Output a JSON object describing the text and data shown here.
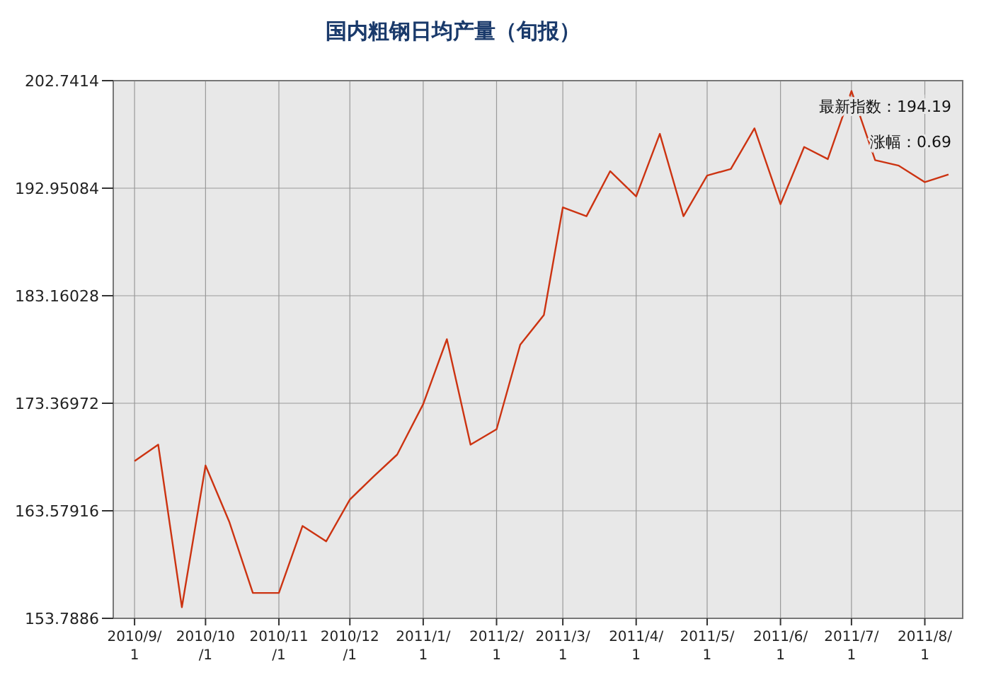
{
  "chart_data": {
    "type": "line",
    "title": "国内粗钢日均产量（旬报）",
    "x": [
      "2010-09-01",
      "2010-09-11",
      "2010-09-21",
      "2010-10-01",
      "2010-10-11",
      "2010-10-21",
      "2010-11-01",
      "2010-11-11",
      "2010-11-21",
      "2010-12-01",
      "2010-12-11",
      "2010-12-21",
      "2011-01-01",
      "2011-01-11",
      "2011-01-21",
      "2011-02-01",
      "2011-02-11",
      "2011-02-21",
      "2011-03-01",
      "2011-03-11",
      "2011-03-21",
      "2011-04-01",
      "2011-04-11",
      "2011-04-21",
      "2011-05-01",
      "2011-05-11",
      "2011-05-21",
      "2011-06-01",
      "2011-06-11",
      "2011-06-21",
      "2011-07-01",
      "2011-07-11",
      "2011-07-21",
      "2011-08-01",
      "2011-08-11"
    ],
    "series": [
      {
        "color": "#cc3311",
        "values": [
          168.1,
          169.6,
          154.8,
          167.7,
          162.6,
          156.1,
          156.1,
          162.2,
          160.8,
          164.6,
          166.7,
          168.7,
          173.3,
          179.2,
          169.6,
          171.0,
          178.7,
          181.4,
          191.2,
          190.4,
          194.5,
          192.2,
          197.9,
          190.4,
          194.1,
          194.7,
          198.4,
          191.5,
          196.7,
          195.6,
          201.8,
          195.5,
          195.0,
          193.5,
          194.2
        ]
      }
    ],
    "xlim": [
      "2010-08-23",
      "2011-08-17"
    ],
    "xticks": [
      {
        "value": "2010-09-01",
        "label": "2010/9/1"
      },
      {
        "value": "2010-10-01",
        "label": "2010/10/1"
      },
      {
        "value": "2010-11-01",
        "label": "2010/11/1"
      },
      {
        "value": "2010-12-01",
        "label": "2010/12/1"
      },
      {
        "value": "2011-01-01",
        "label": "2011/1/1"
      },
      {
        "value": "2011-02-01",
        "label": "2011/2/1"
      },
      {
        "value": "2011-03-01",
        "label": "2011/3/1"
      },
      {
        "value": "2011-04-01",
        "label": "2011/4/1"
      },
      {
        "value": "2011-05-01",
        "label": "2011/5/1"
      },
      {
        "value": "2011-06-01",
        "label": "2011/6/1"
      },
      {
        "value": "2011-07-01",
        "label": "2011/7/1"
      },
      {
        "value": "2011-08-01",
        "label": "2011/8/1"
      }
    ],
    "ylim": [
      153.7886,
      202.7414
    ],
    "yticks": [
      153.7886,
      163.57916,
      173.36972,
      183.16028,
      192.95084,
      202.7414
    ],
    "grid": true,
    "annotations": [
      "最新指数：194.19",
      "涨幅：0.69"
    ]
  }
}
